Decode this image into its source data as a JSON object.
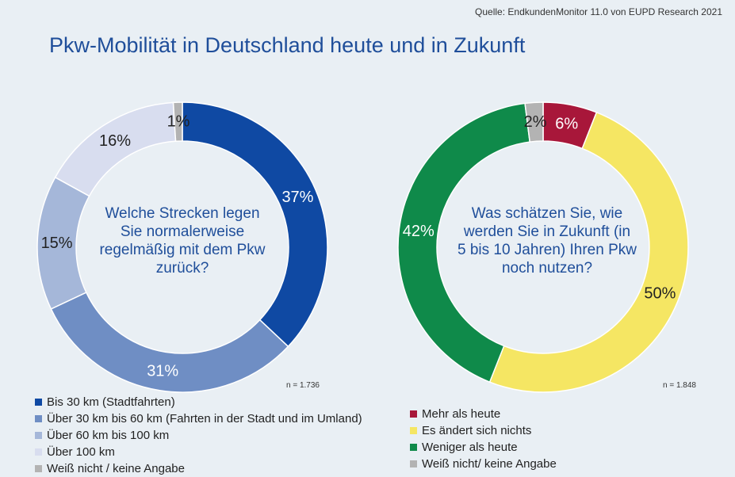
{
  "source": "Quelle: EndkundenMonitor 11.0 von EUPD Research 2021",
  "title": "Pkw-Mobilität in Deutschland heute und in Zukunft",
  "chart_data": [
    {
      "type": "pie",
      "donut": true,
      "question": "Welche Strecken legen Sie normalerweise regelmäßig mit dem Pkw zurück?",
      "question_lines": [
        "Welche Strecken legen",
        "Sie normalerweise",
        "regelmäßig mit dem Pkw",
        "zurück?"
      ],
      "n_label": "n = 1.736",
      "slices": [
        {
          "label": "Bis 30 km (Stadtfahrten)",
          "value": 37,
          "value_label": "37%",
          "color": "#0f49a3",
          "text_color": "#ffffff"
        },
        {
          "label": "Über 30 km bis 60 km (Fahrten in der Stadt und im Umland)",
          "value": 31,
          "value_label": "31%",
          "color": "#6f8ec4",
          "text_color": "#ffffff"
        },
        {
          "label": "Über 60 km bis 100 km",
          "value": 15,
          "value_label": "15%",
          "color": "#a5b7d9",
          "text_color": "#222222"
        },
        {
          "label": "Über 100 km",
          "value": 16,
          "value_label": "16%",
          "color": "#d8ddef",
          "text_color": "#222222"
        },
        {
          "label": "Weiß nicht / keine Angabe",
          "value": 1,
          "value_label": "1%",
          "color": "#b3b3b3",
          "text_color": "#222222"
        }
      ]
    },
    {
      "type": "pie",
      "donut": true,
      "question": "Was schätzen Sie, wie werden Sie in Zukunft (in 5 bis 10 Jahren) Ihren Pkw noch nutzen?",
      "question_lines": [
        "Was schätzen Sie, wie",
        "werden Sie in Zukunft (in",
        "5 bis 10 Jahren) Ihren Pkw",
        "noch nutzen?"
      ],
      "n_label": "n = 1.848",
      "slices": [
        {
          "label": "Mehr als heute",
          "value": 6,
          "value_label": "6%",
          "color": "#a8173a",
          "text_color": "#ffffff"
        },
        {
          "label": "Es ändert sich nichts",
          "value": 50,
          "value_label": "50%",
          "color": "#f5e663",
          "text_color": "#222222"
        },
        {
          "label": "Weniger als heute",
          "value": 42,
          "value_label": "42%",
          "color": "#0f8a4a",
          "text_color": "#ffffff"
        },
        {
          "label": "Weiß nicht/ keine Angabe",
          "value": 2,
          "value_label": "2%",
          "color": "#b3b3b3",
          "text_color": "#222222"
        }
      ]
    }
  ]
}
